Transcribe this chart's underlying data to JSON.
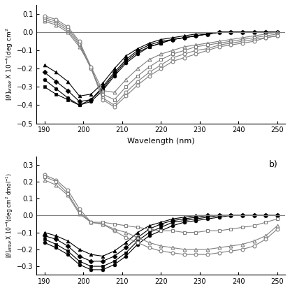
{
  "panel_a": {
    "ylabel": "[θ]MRW X 10⁻⁴(deg cm²",
    "xlabel": "Wavelength (nm)",
    "ylim": [
      -0.5,
      0.15
    ],
    "xlim": [
      188,
      252
    ],
    "yticks": [
      -0.5,
      -0.4,
      -0.3,
      -0.2,
      -0.1,
      0.0,
      0.1
    ],
    "xticks": [
      190,
      200,
      210,
      220,
      230,
      240,
      250
    ],
    "label": "",
    "filled_series": [
      {
        "marker": "^",
        "x": [
          190,
          193,
          196,
          199,
          202,
          205,
          208,
          211,
          214,
          217,
          220,
          223,
          226,
          229,
          232,
          235,
          238,
          241,
          244,
          247,
          250
        ],
        "y": [
          -0.18,
          -0.22,
          -0.27,
          -0.35,
          -0.34,
          -0.28,
          -0.2,
          -0.13,
          -0.09,
          -0.06,
          -0.04,
          -0.03,
          -0.02,
          -0.01,
          -0.01,
          0.0,
          0.0,
          0.0,
          0.0,
          0.0,
          0.0
        ]
      },
      {
        "marker": "D",
        "x": [
          190,
          193,
          196,
          199,
          202,
          205,
          208,
          211,
          214,
          217,
          220,
          223,
          226,
          229,
          232,
          235,
          238,
          241,
          244,
          247,
          250
        ],
        "y": [
          -0.22,
          -0.27,
          -0.32,
          -0.38,
          -0.37,
          -0.3,
          -0.22,
          -0.15,
          -0.1,
          -0.07,
          -0.05,
          -0.04,
          -0.03,
          -0.02,
          -0.01,
          0.0,
          0.0,
          0.0,
          0.0,
          0.0,
          0.0
        ]
      },
      {
        "marker": "o",
        "x": [
          190,
          193,
          196,
          199,
          202,
          205,
          208,
          211,
          214,
          217,
          220,
          223,
          226,
          229,
          232,
          235,
          238,
          241,
          244,
          247,
          250
        ],
        "y": [
          -0.26,
          -0.31,
          -0.36,
          -0.4,
          -0.38,
          -0.32,
          -0.24,
          -0.17,
          -0.12,
          -0.08,
          -0.06,
          -0.04,
          -0.03,
          -0.02,
          -0.01,
          0.0,
          0.0,
          0.0,
          0.0,
          0.0,
          0.0
        ]
      },
      {
        "marker": "s",
        "x": [
          190,
          193,
          196,
          199,
          202,
          205,
          208,
          211,
          214,
          217,
          220,
          223,
          226,
          229,
          232,
          235,
          238,
          241,
          244,
          247,
          250
        ],
        "y": [
          -0.3,
          -0.34,
          -0.37,
          -0.4,
          -0.37,
          -0.31,
          -0.23,
          -0.16,
          -0.11,
          -0.08,
          -0.06,
          -0.04,
          -0.03,
          -0.02,
          -0.01,
          0.0,
          0.0,
          0.0,
          0.0,
          0.0,
          0.0
        ]
      }
    ],
    "open_series": [
      {
        "marker": "^",
        "x": [
          190,
          193,
          196,
          199,
          202,
          205,
          208,
          211,
          214,
          217,
          220,
          223,
          226,
          229,
          232,
          235,
          238,
          241,
          244,
          247,
          250
        ],
        "y": [
          0.06,
          0.04,
          0.0,
          -0.08,
          -0.19,
          -0.32,
          -0.33,
          -0.26,
          -0.2,
          -0.15,
          -0.12,
          -0.1,
          -0.08,
          -0.07,
          -0.06,
          -0.05,
          -0.04,
          -0.03,
          -0.02,
          -0.01,
          0.0
        ]
      },
      {
        "marker": "s",
        "x": [
          190,
          193,
          196,
          199,
          202,
          205,
          208,
          211,
          214,
          217,
          220,
          223,
          226,
          229,
          232,
          235,
          238,
          241,
          244,
          247,
          250
        ],
        "y": [
          0.07,
          0.05,
          0.01,
          -0.07,
          -0.2,
          -0.34,
          -0.37,
          -0.3,
          -0.24,
          -0.19,
          -0.15,
          -0.12,
          -0.1,
          -0.08,
          -0.07,
          -0.06,
          -0.05,
          -0.04,
          -0.03,
          -0.02,
          -0.01
        ]
      },
      {
        "marker": "o",
        "x": [
          190,
          193,
          196,
          199,
          202,
          205,
          208,
          211,
          214,
          217,
          220,
          223,
          226,
          229,
          232,
          235,
          238,
          241,
          244,
          247,
          250
        ],
        "y": [
          0.08,
          0.06,
          0.02,
          -0.06,
          -0.2,
          -0.36,
          -0.4,
          -0.33,
          -0.27,
          -0.22,
          -0.18,
          -0.14,
          -0.12,
          -0.1,
          -0.09,
          -0.07,
          -0.06,
          -0.05,
          -0.04,
          -0.03,
          -0.02
        ]
      },
      {
        "marker": "o",
        "x": [
          190,
          193,
          196,
          199,
          202,
          205,
          208,
          211,
          214,
          217,
          220,
          223,
          226,
          229,
          232,
          235,
          238,
          241,
          244,
          247,
          250
        ],
        "y": [
          0.09,
          0.07,
          0.03,
          -0.05,
          -0.19,
          -0.37,
          -0.41,
          -0.35,
          -0.29,
          -0.24,
          -0.2,
          -0.16,
          -0.14,
          -0.12,
          -0.1,
          -0.08,
          -0.07,
          -0.06,
          -0.05,
          -0.03,
          -0.02
        ]
      }
    ]
  },
  "panel_b": {
    "ylabel": "[θ]MRW X 10⁻⁴(deg cm² dmol⁻¹)",
    "xlabel": "",
    "ylim": [
      -0.35,
      0.35
    ],
    "xlim": [
      188,
      252
    ],
    "yticks": [
      -0.3,
      -0.2,
      -0.1,
      0.0,
      0.1,
      0.2,
      0.3
    ],
    "xticks": [
      190,
      200,
      210,
      220,
      230,
      240,
      250
    ],
    "label": "b)",
    "filled_series": [
      {
        "marker": "^",
        "x": [
          190,
          193,
          196,
          199,
          202,
          205,
          208,
          211,
          214,
          217,
          220,
          223,
          226,
          229,
          232,
          235,
          238,
          241,
          244,
          247,
          250
        ],
        "y": [
          -0.1,
          -0.12,
          -0.15,
          -0.2,
          -0.23,
          -0.24,
          -0.21,
          -0.16,
          -0.1,
          -0.06,
          -0.04,
          -0.02,
          -0.01,
          0.0,
          0.0,
          0.0,
          0.0,
          0.0,
          0.0,
          0.0,
          0.0
        ]
      },
      {
        "marker": "D",
        "x": [
          190,
          193,
          196,
          199,
          202,
          205,
          208,
          211,
          214,
          217,
          220,
          223,
          226,
          229,
          232,
          235,
          238,
          241,
          244,
          247,
          250
        ],
        "y": [
          -0.12,
          -0.14,
          -0.18,
          -0.24,
          -0.27,
          -0.27,
          -0.24,
          -0.19,
          -0.13,
          -0.08,
          -0.05,
          -0.03,
          -0.02,
          -0.01,
          0.0,
          0.0,
          0.0,
          0.0,
          0.0,
          0.0,
          0.0
        ]
      },
      {
        "marker": "s",
        "x": [
          190,
          193,
          196,
          199,
          202,
          205,
          208,
          211,
          214,
          217,
          220,
          223,
          226,
          229,
          232,
          235,
          238,
          241,
          244,
          247,
          250
        ],
        "y": [
          -0.14,
          -0.17,
          -0.21,
          -0.27,
          -0.3,
          -0.3,
          -0.27,
          -0.22,
          -0.15,
          -0.1,
          -0.07,
          -0.04,
          -0.03,
          -0.02,
          -0.01,
          0.0,
          0.0,
          0.0,
          0.0,
          0.0,
          0.0
        ]
      },
      {
        "marker": "o",
        "x": [
          190,
          193,
          196,
          199,
          202,
          205,
          208,
          211,
          214,
          217,
          220,
          223,
          226,
          229,
          232,
          235,
          238,
          241,
          244,
          247,
          250
        ],
        "y": [
          -0.16,
          -0.19,
          -0.23,
          -0.29,
          -0.32,
          -0.32,
          -0.29,
          -0.24,
          -0.17,
          -0.12,
          -0.09,
          -0.06,
          -0.04,
          -0.03,
          -0.02,
          -0.01,
          0.0,
          0.0,
          0.0,
          0.0,
          0.0
        ]
      }
    ],
    "open_series": [
      {
        "marker": "o",
        "x": [
          190,
          193,
          196,
          199,
          202,
          205,
          208,
          211,
          214,
          217,
          220,
          223,
          226,
          229,
          232,
          235,
          238,
          241,
          244,
          247,
          250
        ],
        "y": [
          0.24,
          0.21,
          0.15,
          0.04,
          -0.04,
          -0.05,
          -0.09,
          -0.13,
          -0.16,
          -0.19,
          -0.21,
          -0.22,
          -0.23,
          -0.23,
          -0.23,
          -0.22,
          -0.21,
          -0.2,
          -0.18,
          -0.14,
          -0.08
        ]
      },
      {
        "marker": "^",
        "x": [
          190,
          193,
          196,
          199,
          202,
          205,
          208,
          211,
          214,
          217,
          220,
          223,
          226,
          229,
          232,
          235,
          238,
          241,
          244,
          247,
          250
        ],
        "y": [
          0.21,
          0.18,
          0.12,
          0.01,
          -0.04,
          -0.05,
          -0.08,
          -0.1,
          -0.13,
          -0.16,
          -0.18,
          -0.19,
          -0.2,
          -0.2,
          -0.2,
          -0.19,
          -0.18,
          -0.17,
          -0.15,
          -0.12,
          -0.06
        ]
      },
      {
        "marker": "s",
        "x": [
          190,
          193,
          196,
          199,
          202,
          205,
          208,
          211,
          214,
          217,
          220,
          223,
          226,
          229,
          232,
          235,
          238,
          241,
          244,
          247,
          250
        ],
        "y": [
          0.23,
          0.2,
          0.13,
          0.02,
          -0.04,
          -0.04,
          -0.05,
          -0.06,
          -0.07,
          -0.08,
          -0.09,
          -0.09,
          -0.1,
          -0.1,
          -0.09,
          -0.09,
          -0.08,
          -0.07,
          -0.06,
          -0.04,
          -0.02
        ]
      }
    ]
  }
}
